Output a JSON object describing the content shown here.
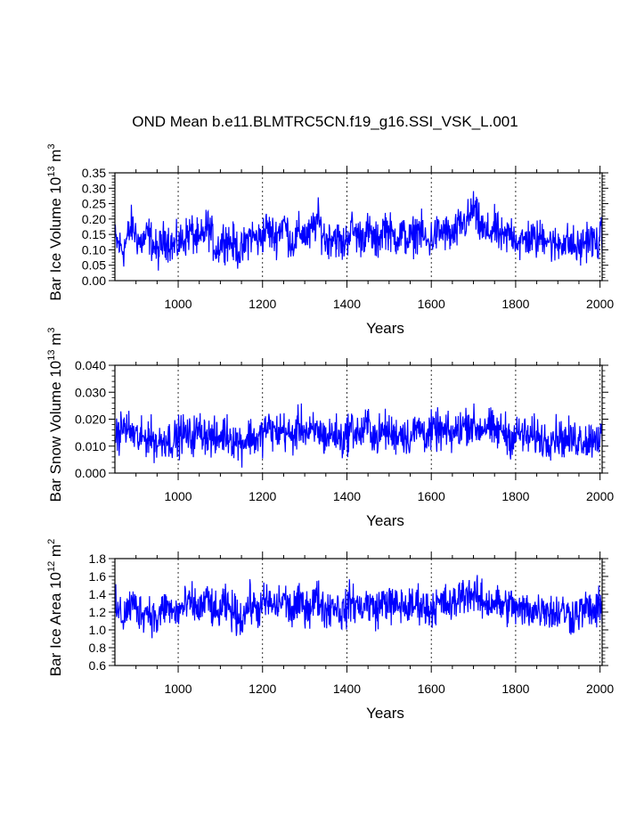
{
  "page_title": "OND Mean b.e11.BLMTRC5CN.f19_g16.SSI_VSK_L.001",
  "colors": {
    "series": "#0000ff",
    "axis": "#000000",
    "grid": "#000000"
  },
  "chart_data": [
    {
      "type": "line",
      "ylabel": {
        "main": "Bar Ice Volume 10",
        "exp": "13",
        "unit": " m",
        "unit_exp": "3"
      },
      "xlabel": "Years",
      "xlim": [
        850,
        2005
      ],
      "ylim": [
        0.0,
        0.35
      ],
      "xticks": [
        1000,
        1200,
        1400,
        1600,
        1800,
        2000
      ],
      "yticks": [
        0.0,
        0.05,
        0.1,
        0.15,
        0.2,
        0.25,
        0.3,
        0.35
      ],
      "ytick_labels": [
        "0.00",
        "0.05",
        "0.10",
        "0.15",
        "0.20",
        "0.25",
        "0.30",
        "0.35"
      ],
      "grid_x": true,
      "series": [
        {
          "x": [
            850,
            870,
            890,
            910,
            930,
            950,
            970,
            990,
            1010,
            1030,
            1050,
            1070,
            1090,
            1110,
            1130,
            1150,
            1170,
            1190,
            1210,
            1230,
            1250,
            1270,
            1290,
            1310,
            1330,
            1350,
            1370,
            1390,
            1410,
            1430,
            1450,
            1470,
            1490,
            1510,
            1530,
            1550,
            1570,
            1590,
            1610,
            1630,
            1650,
            1670,
            1690,
            1700,
            1710,
            1730,
            1750,
            1770,
            1790,
            1810,
            1830,
            1850,
            1870,
            1890,
            1910,
            1930,
            1950,
            1970,
            1990,
            2005
          ],
          "y": [
            0.13,
            0.1,
            0.18,
            0.12,
            0.15,
            0.09,
            0.14,
            0.11,
            0.13,
            0.16,
            0.12,
            0.18,
            0.1,
            0.14,
            0.12,
            0.09,
            0.15,
            0.13,
            0.17,
            0.14,
            0.19,
            0.12,
            0.16,
            0.14,
            0.2,
            0.13,
            0.15,
            0.11,
            0.17,
            0.14,
            0.16,
            0.12,
            0.18,
            0.14,
            0.15,
            0.13,
            0.17,
            0.12,
            0.15,
            0.16,
            0.14,
            0.18,
            0.2,
            0.24,
            0.19,
            0.15,
            0.17,
            0.13,
            0.16,
            0.12,
            0.14,
            0.13,
            0.15,
            0.11,
            0.13,
            0.12,
            0.1,
            0.14,
            0.12,
            0.14
          ]
        }
      ]
    },
    {
      "type": "line",
      "ylabel": {
        "main": "Bar Snow Volume 10",
        "exp": "13",
        "unit": " m",
        "unit_exp": "3"
      },
      "xlabel": "Years",
      "xlim": [
        850,
        2005
      ],
      "ylim": [
        0.0,
        0.04
      ],
      "xticks": [
        1000,
        1200,
        1400,
        1600,
        1800,
        2000
      ],
      "yticks": [
        0.0,
        0.01,
        0.02,
        0.03,
        0.04
      ],
      "ytick_labels": [
        "0.000",
        "0.010",
        "0.020",
        "0.030",
        "0.040"
      ],
      "grid_x": true,
      "series": [
        {
          "x": [
            850,
            870,
            890,
            910,
            930,
            950,
            970,
            990,
            1010,
            1030,
            1050,
            1070,
            1090,
            1110,
            1130,
            1150,
            1170,
            1190,
            1210,
            1230,
            1250,
            1270,
            1290,
            1310,
            1330,
            1350,
            1370,
            1390,
            1410,
            1430,
            1450,
            1470,
            1490,
            1510,
            1530,
            1550,
            1570,
            1590,
            1610,
            1630,
            1650,
            1670,
            1690,
            1710,
            1730,
            1750,
            1770,
            1790,
            1810,
            1830,
            1850,
            1870,
            1890,
            1910,
            1930,
            1950,
            1970,
            1990,
            2005
          ],
          "y": [
            0.013,
            0.017,
            0.015,
            0.012,
            0.014,
            0.011,
            0.013,
            0.012,
            0.015,
            0.013,
            0.016,
            0.014,
            0.012,
            0.015,
            0.013,
            0.011,
            0.014,
            0.012,
            0.017,
            0.015,
            0.016,
            0.013,
            0.018,
            0.014,
            0.016,
            0.013,
            0.015,
            0.012,
            0.017,
            0.014,
            0.018,
            0.013,
            0.016,
            0.014,
            0.015,
            0.013,
            0.017,
            0.014,
            0.016,
            0.015,
            0.014,
            0.017,
            0.019,
            0.016,
            0.018,
            0.015,
            0.016,
            0.013,
            0.015,
            0.013,
            0.014,
            0.012,
            0.014,
            0.013,
            0.012,
            0.013,
            0.012,
            0.014,
            0.013
          ]
        }
      ]
    },
    {
      "type": "line",
      "ylabel": {
        "main": "Bar Ice Area 10",
        "exp": "12",
        "unit": " m",
        "unit_exp": "2"
      },
      "xlabel": "Years",
      "xlim": [
        850,
        2005
      ],
      "ylim": [
        0.6,
        1.8
      ],
      "xticks": [
        1000,
        1200,
        1400,
        1600,
        1800,
        2000
      ],
      "yticks": [
        0.6,
        0.8,
        1.0,
        1.2,
        1.4,
        1.6,
        1.8
      ],
      "ytick_labels": [
        "0.6",
        "0.8",
        "1.0",
        "1.2",
        "1.4",
        "1.6",
        "1.8"
      ],
      "grid_x": true,
      "series": [
        {
          "x": [
            850,
            870,
            890,
            910,
            930,
            950,
            970,
            990,
            1010,
            1030,
            1050,
            1070,
            1090,
            1110,
            1130,
            1150,
            1170,
            1190,
            1210,
            1230,
            1250,
            1270,
            1290,
            1310,
            1330,
            1350,
            1370,
            1390,
            1410,
            1430,
            1450,
            1470,
            1490,
            1510,
            1530,
            1550,
            1570,
            1590,
            1610,
            1630,
            1650,
            1670,
            1690,
            1710,
            1730,
            1750,
            1770,
            1790,
            1810,
            1830,
            1850,
            1870,
            1890,
            1910,
            1930,
            1950,
            1970,
            1990,
            2005
          ],
          "y": [
            1.25,
            1.15,
            1.3,
            1.2,
            1.22,
            1.1,
            1.28,
            1.18,
            1.24,
            1.3,
            1.22,
            1.35,
            1.15,
            1.28,
            1.2,
            1.12,
            1.3,
            1.22,
            1.32,
            1.25,
            1.35,
            1.2,
            1.3,
            1.25,
            1.36,
            1.22,
            1.3,
            1.18,
            1.33,
            1.25,
            1.3,
            1.22,
            1.34,
            1.26,
            1.28,
            1.24,
            1.32,
            1.22,
            1.28,
            1.3,
            1.26,
            1.4,
            1.42,
            1.35,
            1.3,
            1.32,
            1.26,
            1.28,
            1.2,
            1.24,
            1.22,
            1.26,
            1.18,
            1.22,
            1.16,
            1.2,
            1.24,
            1.2,
            1.25
          ]
        }
      ]
    }
  ]
}
